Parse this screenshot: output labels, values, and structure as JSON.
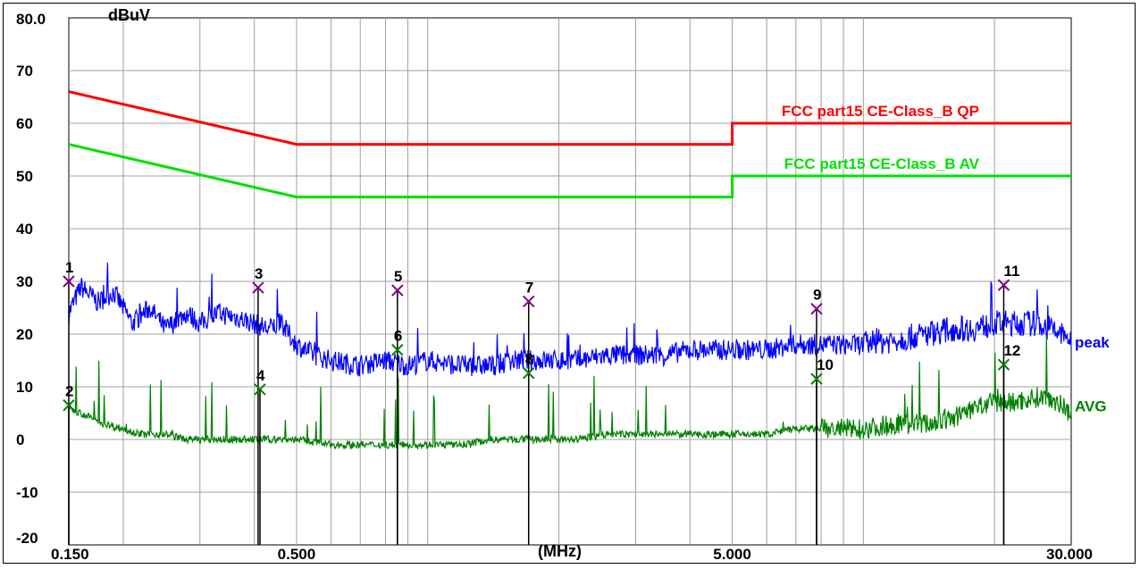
{
  "chart_data": {
    "type": "line",
    "title": "",
    "ylabel": "dBuV",
    "xlabel": "(MHz)",
    "x_scale": "log",
    "xlim": [
      0.15,
      30.0
    ],
    "ylim": [
      -20,
      80
    ],
    "grid": true,
    "y_ticks": [
      {
        "value": 80,
        "label": "80.0"
      },
      {
        "value": 70,
        "label": "70"
      },
      {
        "value": 60,
        "label": "60"
      },
      {
        "value": 50,
        "label": "50"
      },
      {
        "value": 40,
        "label": "40"
      },
      {
        "value": 30,
        "label": "30"
      },
      {
        "value": 20,
        "label": "20"
      },
      {
        "value": 10,
        "label": "10"
      },
      {
        "value": 0,
        "label": "0"
      },
      {
        "value": -10,
        "label": "-10"
      },
      {
        "value": -20,
        "label": "-20"
      }
    ],
    "x_ticks": [
      {
        "value": 0.15,
        "label": "0.150"
      },
      {
        "value": 0.5,
        "label": "0.500"
      },
      {
        "value": 5.0,
        "label": "5.000"
      },
      {
        "value": 30.0,
        "label": "30.000"
      }
    ],
    "limit_lines": [
      {
        "name": "FCC part15 CE-Class_B QP",
        "color": "#ff0000",
        "points": [
          [
            0.15,
            66
          ],
          [
            0.5,
            56
          ],
          [
            5.0,
            56
          ],
          [
            5.0,
            60
          ],
          [
            30.0,
            60
          ]
        ]
      },
      {
        "name": "FCC part15 CE-Class_B AV",
        "color": "#00e000",
        "points": [
          [
            0.15,
            56
          ],
          [
            0.5,
            46
          ],
          [
            5.0,
            46
          ],
          [
            5.0,
            50
          ],
          [
            30.0,
            50
          ]
        ]
      }
    ],
    "series": [
      {
        "name": "peak",
        "color": "#0000ff",
        "points": [
          [
            0.15,
            24
          ],
          [
            0.16,
            29
          ],
          [
            0.175,
            26
          ],
          [
            0.19,
            28
          ],
          [
            0.21,
            22
          ],
          [
            0.23,
            25
          ],
          [
            0.25,
            21
          ],
          [
            0.28,
            24
          ],
          [
            0.3,
            22
          ],
          [
            0.33,
            24
          ],
          [
            0.37,
            23
          ],
          [
            0.4,
            22
          ],
          [
            0.43,
            21
          ],
          [
            0.46,
            22
          ],
          [
            0.5,
            18
          ],
          [
            0.55,
            16
          ],
          [
            0.6,
            15
          ],
          [
            0.7,
            14
          ],
          [
            0.8,
            15
          ],
          [
            0.9,
            14
          ],
          [
            1.0,
            15
          ],
          [
            1.2,
            14
          ],
          [
            1.4,
            14
          ],
          [
            1.6,
            15
          ],
          [
            1.9,
            15
          ],
          [
            2.2,
            15
          ],
          [
            2.6,
            16
          ],
          [
            3.0,
            16
          ],
          [
            3.5,
            16
          ],
          [
            4.0,
            17
          ],
          [
            4.5,
            17
          ],
          [
            5.0,
            17
          ],
          [
            6.0,
            17
          ],
          [
            7.0,
            18
          ],
          [
            8.0,
            18
          ],
          [
            9.0,
            18
          ],
          [
            10.0,
            18
          ],
          [
            12.0,
            19
          ],
          [
            14.0,
            20
          ],
          [
            16.0,
            21
          ],
          [
            18.0,
            21
          ],
          [
            20.0,
            22
          ],
          [
            22.0,
            22
          ],
          [
            25.0,
            22
          ],
          [
            27.0,
            21
          ],
          [
            30.0,
            19
          ]
        ]
      },
      {
        "name": "AVG",
        "color": "#008000",
        "points": [
          [
            0.15,
            6
          ],
          [
            0.16,
            5
          ],
          [
            0.18,
            3
          ],
          [
            0.2,
            2
          ],
          [
            0.22,
            1
          ],
          [
            0.25,
            1
          ],
          [
            0.28,
            0
          ],
          [
            0.32,
            0
          ],
          [
            0.35,
            0
          ],
          [
            0.4,
            0
          ],
          [
            0.45,
            0
          ],
          [
            0.5,
            0
          ],
          [
            0.6,
            -1
          ],
          [
            0.7,
            -1
          ],
          [
            0.8,
            -1
          ],
          [
            0.9,
            -1
          ],
          [
            1.0,
            -1
          ],
          [
            1.2,
            -1
          ],
          [
            1.4,
            0
          ],
          [
            1.6,
            0
          ],
          [
            1.9,
            0
          ],
          [
            2.2,
            0
          ],
          [
            2.6,
            1
          ],
          [
            3.0,
            1
          ],
          [
            3.5,
            1
          ],
          [
            4.0,
            1
          ],
          [
            5.0,
            1
          ],
          [
            6.0,
            1
          ],
          [
            7.0,
            2
          ],
          [
            8.0,
            2
          ],
          [
            10.0,
            2
          ],
          [
            12.0,
            3
          ],
          [
            14.0,
            3
          ],
          [
            16.0,
            4
          ],
          [
            18.0,
            6
          ],
          [
            20.0,
            7
          ],
          [
            22.0,
            7
          ],
          [
            25.0,
            8
          ],
          [
            27.0,
            8
          ],
          [
            30.0,
            5
          ]
        ]
      }
    ],
    "markers": [
      {
        "label": "1",
        "x": 0.15,
        "y": 30.0,
        "color": "#800080"
      },
      {
        "label": "2",
        "x": 0.15,
        "y": 6.5,
        "color": "#008000"
      },
      {
        "label": "3",
        "x": 0.408,
        "y": 28.8,
        "color": "#800080"
      },
      {
        "label": "4",
        "x": 0.412,
        "y": 9.5,
        "color": "#008000"
      },
      {
        "label": "5",
        "x": 0.852,
        "y": 28.3,
        "color": "#800080"
      },
      {
        "label": "6",
        "x": 0.852,
        "y": 17.0,
        "color": "#008000"
      },
      {
        "label": "7",
        "x": 1.705,
        "y": 26.2,
        "color": "#800080"
      },
      {
        "label": "8",
        "x": 1.705,
        "y": 12.6,
        "color": "#008000"
      },
      {
        "label": "9",
        "x": 7.81,
        "y": 24.8,
        "color": "#800080"
      },
      {
        "label": "10",
        "x": 7.81,
        "y": 11.5,
        "color": "#008000"
      },
      {
        "label": "11",
        "x": 21.0,
        "y": 29.3,
        "color": "#800080"
      },
      {
        "label": "12",
        "x": 21.0,
        "y": 14.2,
        "color": "#008000"
      }
    ]
  }
}
